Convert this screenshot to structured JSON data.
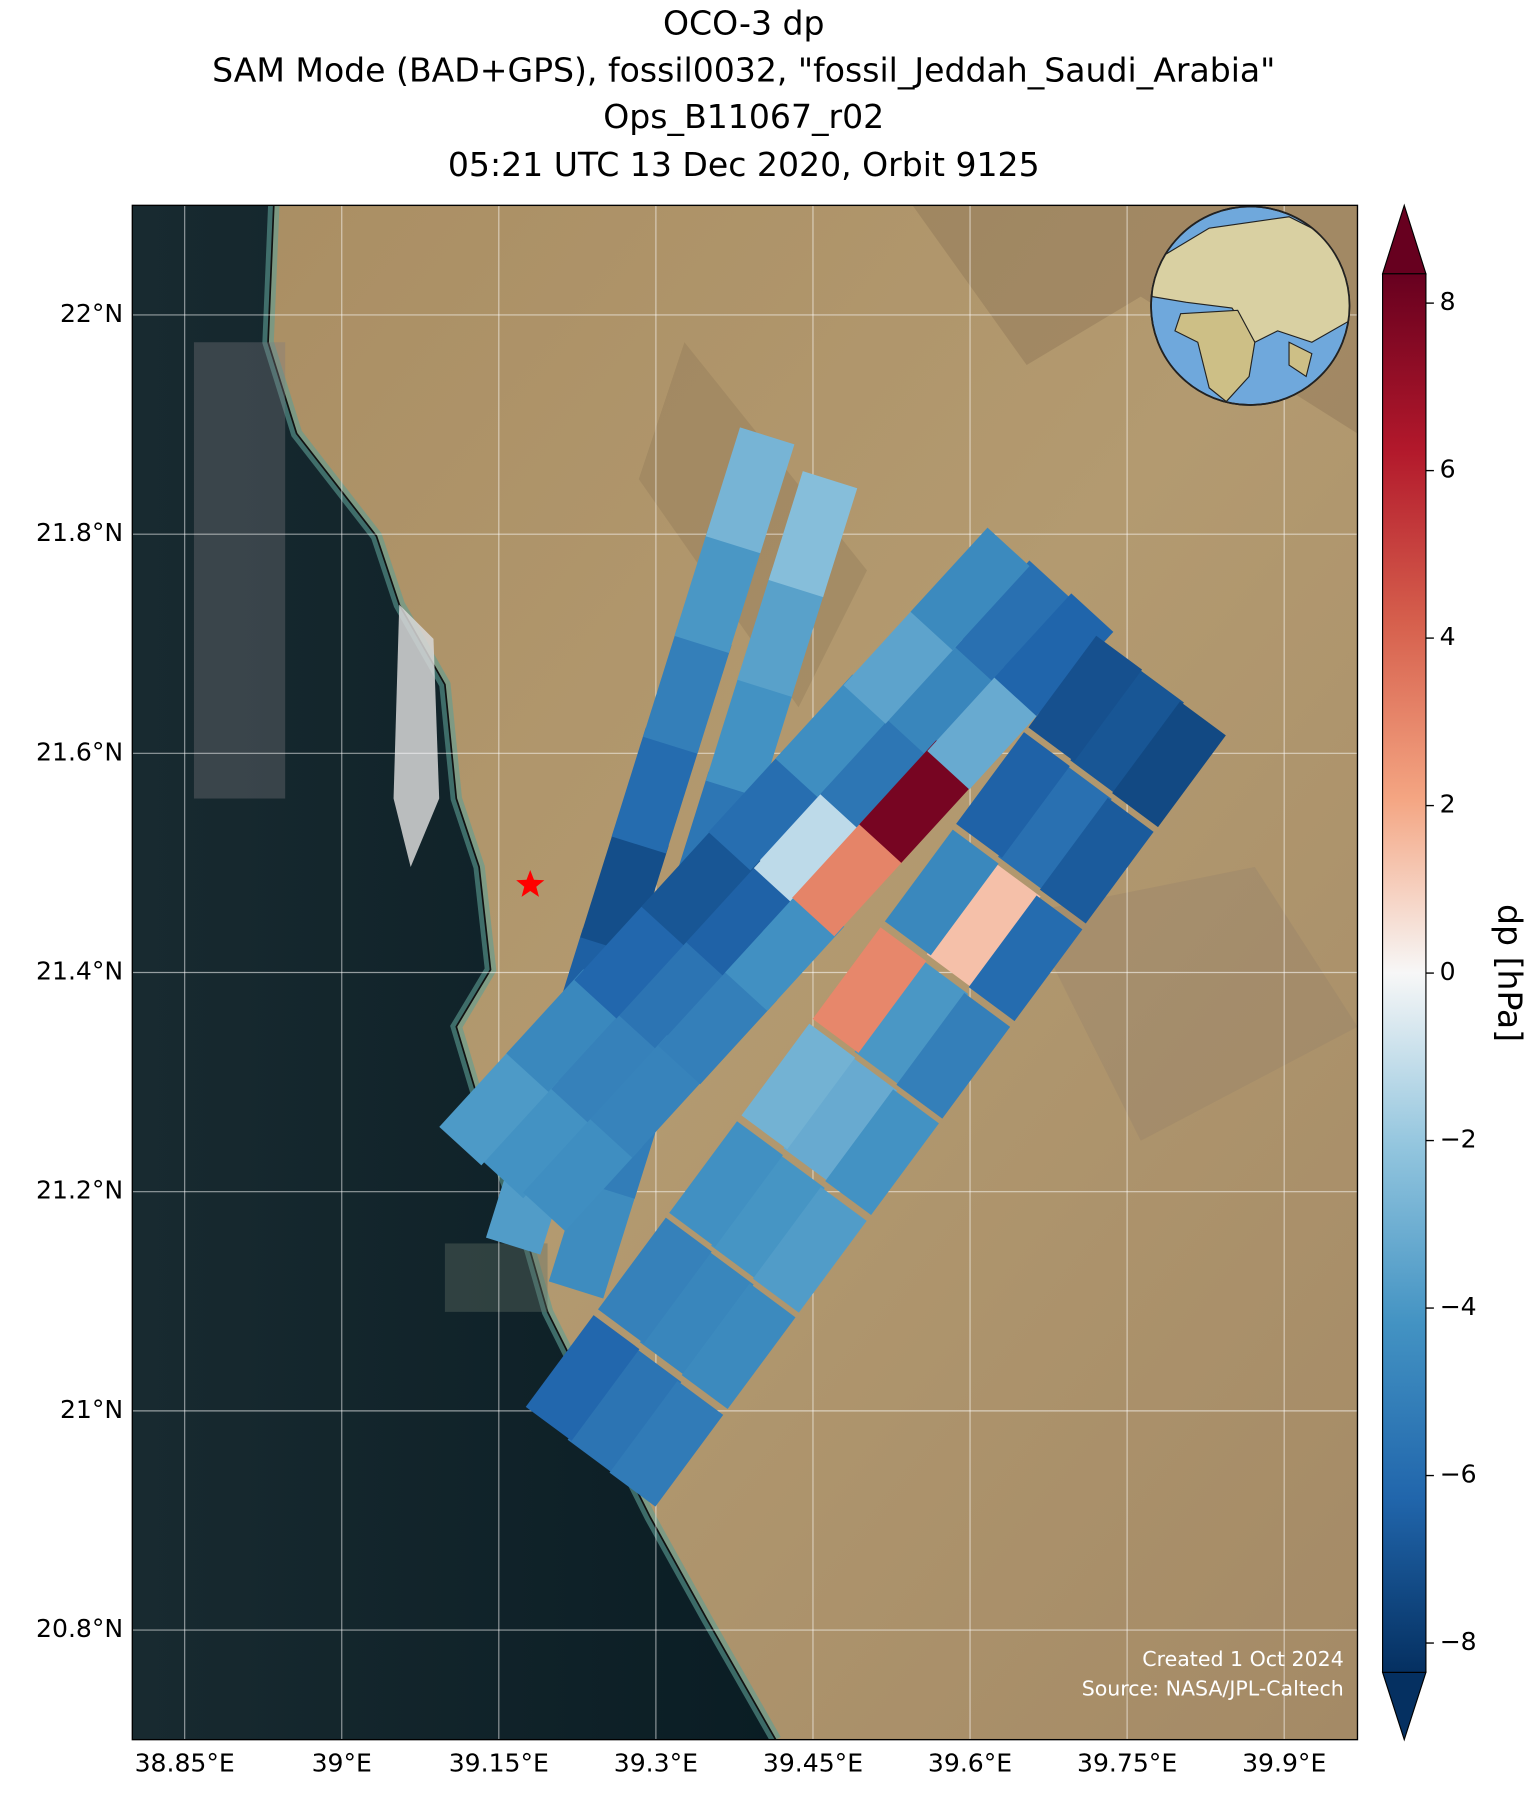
{
  "chart_data": {
    "type": "swath-map",
    "title": [
      "OCO-3 dp",
      "SAM Mode (BAD+GPS), fossil0032, \"fossil_Jeddah_Saudi_Arabia\"",
      "Ops_B11067_r02",
      "05:21 UTC 13 Dec 2020, Orbit 9125"
    ],
    "xlim": [
      38.8,
      39.97
    ],
    "ylim": [
      20.7,
      22.1
    ],
    "xticks": [
      {
        "value": 38.85,
        "label": "38.85°E"
      },
      {
        "value": 39,
        "label": "39°E"
      },
      {
        "value": 39.15,
        "label": "39.15°E"
      },
      {
        "value": 39.3,
        "label": "39.3°E"
      },
      {
        "value": 39.45,
        "label": "39.45°E"
      },
      {
        "value": 39.6,
        "label": "39.6°E"
      },
      {
        "value": 39.75,
        "label": "39.75°E"
      },
      {
        "value": 39.9,
        "label": "39.9°E"
      }
    ],
    "yticks": [
      {
        "value": 20.8,
        "label": "20.8°N"
      },
      {
        "value": 21,
        "label": "21°N"
      },
      {
        "value": 21.2,
        "label": "21.2°N"
      },
      {
        "value": 21.4,
        "label": "21.4°N"
      },
      {
        "value": 21.6,
        "label": "21.6°N"
      },
      {
        "value": 21.8,
        "label": "21.8°N"
      },
      {
        "value": 22,
        "label": "22°N"
      }
    ],
    "grid": true,
    "colormap": "RdBu_r",
    "colorbar_label": "dp [hPa]",
    "clim": [
      -8.35,
      8.35
    ],
    "cticks": [
      {
        "value": -8,
        "label": "−8"
      },
      {
        "value": -6,
        "label": "−6"
      },
      {
        "value": -4,
        "label": "−4"
      },
      {
        "value": -2,
        "label": "−2"
      },
      0,
      2,
      4,
      6,
      8
    ],
    "target": {
      "lon": 39.18,
      "lat": 21.48,
      "color": "#ff0000"
    },
    "swaths": [
      {
        "x": [
          39.24,
          39.27,
          39.3,
          39.33,
          39.36,
          39.39,
          39.42,
          39.45,
          39.18,
          39.21,
          39.24,
          39.27,
          39.3,
          39.33,
          39.36,
          39.39
        ],
        "y": [
          21.16,
          21.251,
          21.343,
          21.434,
          21.526,
          21.617,
          21.709,
          21.8,
          21.2,
          21.291,
          21.383,
          21.474,
          21.566,
          21.657,
          21.749,
          21.84
        ],
        "values": [
          -4.5,
          -5.2,
          -6.1,
          -6.8,
          -5.5,
          -4.2,
          -3.6,
          -2.4,
          -3.8,
          -4.6,
          -6.5,
          -7.2,
          -6.0,
          -5.1,
          -4.0,
          -2.8
        ]
      },
      {
        "x": [
          39.19,
          39.254,
          39.319,
          39.383,
          39.447,
          39.511,
          39.576,
          39.64,
          39.15,
          39.214,
          39.279,
          39.343,
          39.407,
          39.471,
          39.536,
          39.6,
          39.23,
          39.294,
          39.359,
          39.423,
          39.487,
          39.551,
          39.616,
          39.68
        ],
        "y": [
          21.25,
          21.317,
          21.384,
          21.451,
          21.519,
          21.586,
          21.653,
          21.72,
          21.28,
          21.347,
          21.414,
          21.481,
          21.549,
          21.616,
          21.683,
          21.75,
          21.22,
          21.287,
          21.354,
          21.421,
          21.489,
          21.556,
          21.623,
          21.69
        ],
        "values": [
          -4.2,
          -5.0,
          -5.6,
          -6.4,
          -1.2,
          -5.5,
          -4.8,
          -5.8,
          -3.9,
          -4.7,
          -6.2,
          -6.9,
          -5.9,
          -4.4,
          -3.5,
          -4.6,
          -4.4,
          -4.9,
          -5.1,
          -4.3,
          3.1,
          7.9,
          -3.2,
          -6.3
        ]
      },
      {
        "x": [
          39.27,
          39.339,
          39.407,
          39.476,
          39.544,
          39.613,
          39.681,
          39.75,
          39.23,
          39.299,
          39.367,
          39.436,
          39.504,
          39.573,
          39.641,
          39.71,
          39.31,
          39.379,
          39.447,
          39.516,
          39.584,
          39.653,
          39.721,
          39.79
        ],
        "y": [
          21.0,
          21.089,
          21.177,
          21.266,
          21.354,
          21.443,
          21.532,
          21.62,
          21.03,
          21.119,
          21.207,
          21.296,
          21.384,
          21.473,
          21.562,
          21.65,
          20.97,
          21.059,
          21.147,
          21.236,
          21.324,
          21.413,
          21.502,
          21.59
        ],
        "values": [
          -5.6,
          -4.8,
          -4.1,
          -3.2,
          -4.0,
          1.4,
          -5.8,
          -6.9,
          -6.2,
          -5.0,
          -4.3,
          -2.9,
          3.0,
          -4.7,
          -6.4,
          -7.1,
          -5.3,
          -4.6,
          -3.8,
          -4.2,
          -5.1,
          -6.0,
          -6.7,
          -7.4
        ]
      }
    ],
    "footer": [
      "Created 1 Oct 2024",
      "Source: NASA/JPL-Caltech"
    ]
  }
}
